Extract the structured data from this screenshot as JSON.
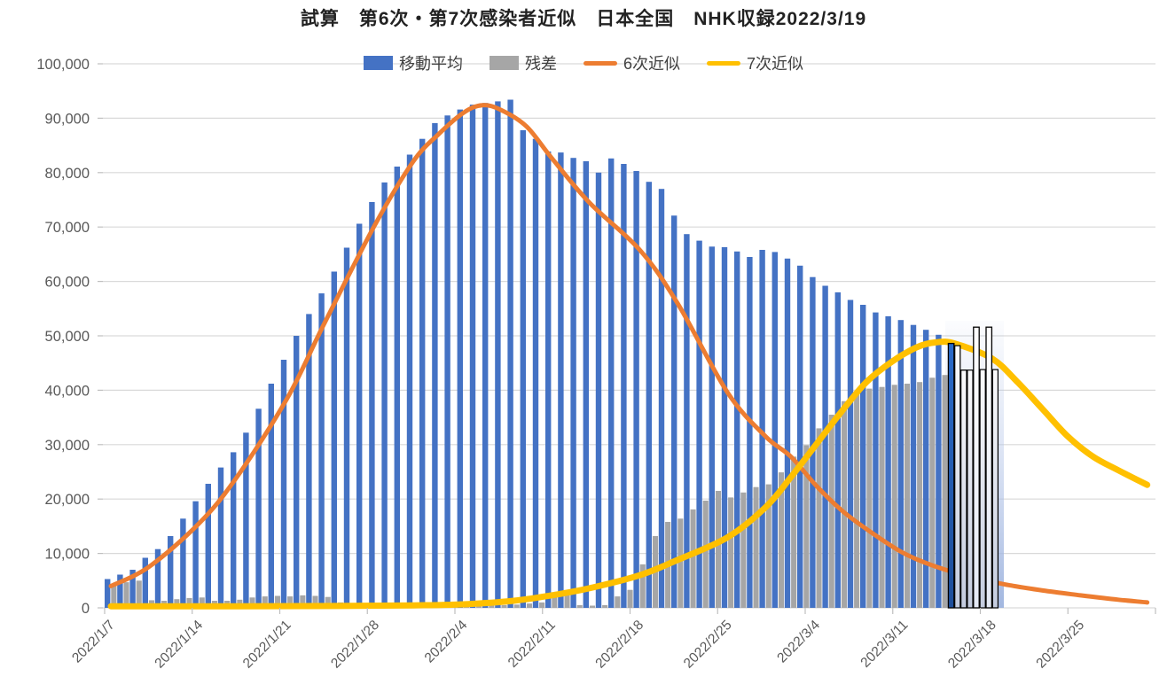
{
  "title": "試算　第6次・第7次感染者近似　日本全国　NHK収録2022/3/19",
  "legend": [
    {
      "label": "移動平均",
      "swatch": "rect",
      "color": "#4472C4"
    },
    {
      "label": "残差",
      "swatch": "rect",
      "color": "#A6A6A6"
    },
    {
      "label": "6次近似",
      "swatch": "line",
      "color": "#ED7D31"
    },
    {
      "label": "7次近似",
      "swatch": "line",
      "color": "#FFC000"
    }
  ],
  "colors": {
    "bar_blue": "#4472C4",
    "bar_gray": "#A6A6A6",
    "line_orange": "#ED7D31",
    "line_yellow": "#FFC000",
    "forecast_blue_bar": "#2A6AC8",
    "forecast_shade": "#B4C5E8",
    "grid": "#D9D9D9",
    "axis_text": "#595959"
  },
  "chart_data": {
    "type": "bar",
    "subtype": "daily bars with two fitted curves",
    "title": "試算　第6次・第7次感染者近似　日本全国　NHK収録2022/3/19",
    "start_date": "2022/1/7",
    "end_date_bars": "2022/3/18",
    "n_days": 71,
    "ylim": [
      0,
      100000
    ],
    "grid": true,
    "legend_position": "top",
    "y_ticks": [
      {
        "value": 0,
        "label": "0"
      },
      {
        "value": 10000,
        "label": "10,000"
      },
      {
        "value": 20000,
        "label": "20,000"
      },
      {
        "value": 30000,
        "label": "30,000"
      },
      {
        "value": 40000,
        "label": "40,000"
      },
      {
        "value": 50000,
        "label": "50,000"
      },
      {
        "value": 60000,
        "label": "60,000"
      },
      {
        "value": 70000,
        "label": "70,000"
      },
      {
        "value": 80000,
        "label": "80,000"
      },
      {
        "value": 90000,
        "label": "90,000"
      },
      {
        "value": 100000,
        "label": "100,000"
      }
    ],
    "x_tick_labels": [
      "2022/1/7",
      "2022/1/14",
      "2022/1/21",
      "2022/1/28",
      "2022/2/4",
      "2022/2/11",
      "2022/2/18",
      "2022/2/25",
      "2022/3/4",
      "2022/3/11",
      "2022/3/18",
      "2022/3/25"
    ],
    "series": [
      {
        "name": "移動平均",
        "type": "bar",
        "color": "#4472C4",
        "values": [
          5300,
          6100,
          7000,
          9200,
          10800,
          13200,
          16400,
          19600,
          22800,
          25800,
          28600,
          32200,
          36600,
          41200,
          45600,
          50000,
          54000,
          57800,
          61800,
          66200,
          70600,
          74600,
          78200,
          81100,
          83300,
          86200,
          89100,
          90500,
          91600,
          92500,
          92800,
          93100,
          93400,
          87800,
          86200,
          83900,
          83700,
          82700,
          82100,
          80000,
          82600,
          81600,
          80300,
          78300,
          77000,
          72100,
          68700,
          67500,
          66400,
          66300,
          65500,
          64500,
          65800,
          65400,
          64200,
          62900,
          60800,
          59200,
          58000,
          56600,
          55700,
          54300,
          53600,
          52900,
          52000,
          51100,
          50200,
          48600,
          43700,
          51600,
          51600
        ]
      },
      {
        "name": "残差",
        "type": "bar",
        "color": "#A6A6A6",
        "values": [
          4000,
          4700,
          5000,
          1400,
          1300,
          1600,
          1800,
          1900,
          1300,
          1300,
          1500,
          1900,
          2100,
          2200,
          2100,
          2300,
          2200,
          2000,
          1000,
          900,
          800,
          600,
          700,
          600,
          500,
          500,
          600,
          500,
          600,
          500,
          400,
          500,
          600,
          800,
          1000,
          1900,
          3100,
          500,
          400,
          500,
          2100,
          3300,
          8000,
          13200,
          15800,
          16400,
          18100,
          19700,
          21500,
          20300,
          21200,
          22200,
          22700,
          24900,
          27800,
          29900,
          33000,
          35500,
          38000,
          39500,
          40300,
          40600,
          41000,
          41200,
          41500,
          42300,
          42800,
          48200,
          43700,
          43800,
          43800
        ]
      },
      {
        "name": "6次近似",
        "type": "line",
        "color": "#ED7D31",
        "points": [
          [
            0,
            4000
          ],
          [
            3,
            7500
          ],
          [
            7,
            15500
          ],
          [
            10,
            24000
          ],
          [
            14,
            38500
          ],
          [
            17,
            52500
          ],
          [
            21,
            70500
          ],
          [
            24,
            82000
          ],
          [
            26,
            87000
          ],
          [
            28,
            91000
          ],
          [
            29.5,
            92400
          ],
          [
            31,
            91500
          ],
          [
            33,
            88500
          ],
          [
            35,
            82700
          ],
          [
            38,
            74500
          ],
          [
            42,
            65800
          ],
          [
            45,
            56000
          ],
          [
            49,
            39500
          ],
          [
            52,
            31500
          ],
          [
            54,
            27800
          ],
          [
            56,
            22500
          ],
          [
            58,
            18000
          ],
          [
            60,
            14500
          ],
          [
            63,
            10000
          ],
          [
            66,
            7200
          ],
          [
            69,
            5400
          ],
          [
            71,
            4300
          ],
          [
            74,
            3200
          ],
          [
            77,
            2300
          ],
          [
            80,
            1500
          ],
          [
            82.3,
            1000
          ]
        ]
      },
      {
        "name": "7次近似",
        "type": "line",
        "color": "#FFC000",
        "points": [
          [
            0,
            300
          ],
          [
            10,
            300
          ],
          [
            18,
            350
          ],
          [
            24,
            450
          ],
          [
            28,
            650
          ],
          [
            32,
            1300
          ],
          [
            35,
            2300
          ],
          [
            38,
            3600
          ],
          [
            42,
            6000
          ],
          [
            45,
            8800
          ],
          [
            49,
            13000
          ],
          [
            52,
            18500
          ],
          [
            54,
            24000
          ],
          [
            56,
            30000
          ],
          [
            58,
            36000
          ],
          [
            60,
            41500
          ],
          [
            62,
            45200
          ],
          [
            64,
            47900
          ],
          [
            65.5,
            48800
          ],
          [
            67,
            48600
          ],
          [
            70,
            45800
          ],
          [
            72,
            41500
          ],
          [
            74,
            36500
          ],
          [
            76,
            31500
          ],
          [
            78,
            27800
          ],
          [
            80,
            25300
          ],
          [
            82.3,
            22600
          ]
        ]
      }
    ],
    "forecast": {
      "note": "rightmost bars drawn as outlined projection bars over a light-blue shaded band",
      "outlined_from_index": 67,
      "ma_styles": {
        "67": "blue",
        "68": "light",
        "69": "white",
        "70": "white"
      },
      "res_style": "light",
      "shade_color": "#B4C5E8"
    }
  }
}
